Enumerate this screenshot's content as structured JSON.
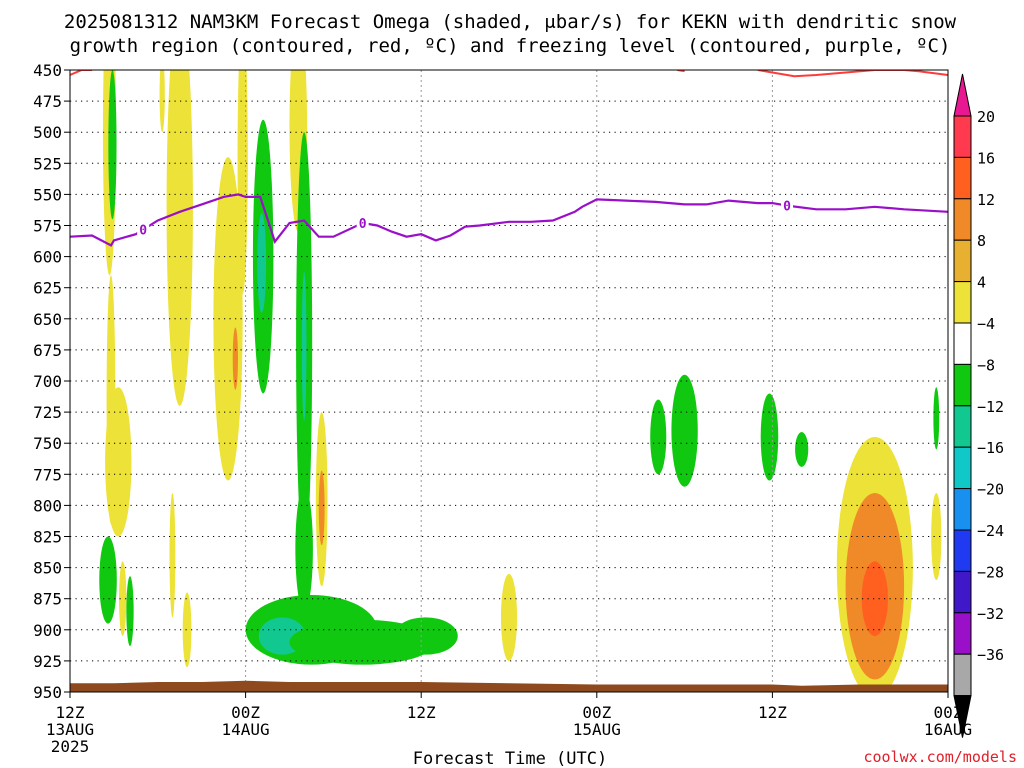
{
  "chart_data": {
    "type": "heatmap",
    "title_line1": "2025081312 NAM3KM Forecast Omega (shaded, μbar/s) for KEKN with dendritic snow",
    "title_line2": "growth region (contoured, red, ºC) and freezing level (contoured, purple, ºC)",
    "xlabel": "Forecast Time (UTC)",
    "watermark": "coolwx.com/models",
    "x_ticks": [
      {
        "hour": 0,
        "label": "12Z",
        "sub": "13AUG",
        "sub2": "2025"
      },
      {
        "hour": 12,
        "label": "00Z",
        "sub": "14AUG",
        "sub2": ""
      },
      {
        "hour": 24,
        "label": "12Z",
        "sub": "",
        "sub2": ""
      },
      {
        "hour": 36,
        "label": "00Z",
        "sub": "15AUG",
        "sub2": ""
      },
      {
        "hour": 48,
        "label": "12Z",
        "sub": "",
        "sub2": ""
      },
      {
        "hour": 60,
        "label": "00Z",
        "sub": "16AUG",
        "sub2": ""
      }
    ],
    "xlim": [
      0,
      60
    ],
    "ylim": [
      450,
      950
    ],
    "y_ticks": [
      450,
      475,
      500,
      525,
      550,
      575,
      600,
      625,
      650,
      675,
      700,
      725,
      750,
      775,
      800,
      825,
      850,
      875,
      900,
      925,
      950
    ],
    "colorbar": {
      "labels": [
        "20",
        "16",
        "12",
        "8",
        "4",
        "−4",
        "−8",
        "−12",
        "−16",
        "−20",
        "−24",
        "−28",
        "−32",
        "−36"
      ],
      "colors": [
        "#ff3a4f",
        "#ff6020",
        "#f08a28",
        "#e8b030",
        "#ece238",
        "#ffffff",
        "#11c811",
        "#10c890",
        "#10c8c8",
        "#1890f0",
        "#1f3af0",
        "#4018c8",
        "#9a10c8",
        "#a8a8a8"
      ],
      "top_cap_color": "#e81890",
      "bottom_cap_color": "#000000"
    },
    "freezing_level": {
      "label": "0",
      "color": "#9a10c8",
      "hours": [
        0,
        1.5,
        2.8,
        3,
        4.5,
        6,
        7.5,
        9,
        10.5,
        11.5,
        12,
        13,
        14,
        15,
        16,
        17,
        18,
        20,
        21,
        22,
        23,
        24,
        25,
        26,
        27,
        28,
        30,
        31.5,
        33,
        34.5,
        35,
        36,
        38,
        40,
        42,
        43.5,
        45,
        47,
        48,
        49,
        51,
        53,
        55,
        57,
        60
      ],
      "pressure": [
        584,
        583,
        591,
        587,
        582,
        571,
        564,
        558,
        552,
        550,
        552,
        552,
        588,
        573,
        571,
        584,
        584,
        573,
        575,
        580,
        584,
        582,
        587,
        583,
        576,
        575,
        572,
        572,
        571,
        564,
        560,
        554,
        555,
        556,
        558,
        558,
        555,
        557,
        557,
        559,
        562,
        562,
        560,
        562,
        564
      ]
    },
    "dgz_top": {
      "color": "#ff3a3a",
      "segments": [
        {
          "hours": [
            0,
            0.8,
            1.5
          ],
          "pressure": [
            454,
            450,
            450
          ]
        },
        {
          "hours": [
            41.5,
            42
          ],
          "pressure": [
            450,
            451
          ]
        },
        {
          "hours": [
            47,
            48,
            49.5,
            51,
            53,
            55,
            57,
            58,
            60
          ],
          "pressure": [
            450,
            452,
            455,
            454,
            452,
            450,
            450,
            451,
            454
          ]
        }
      ]
    },
    "surface": {
      "color": "#8e4a1e",
      "hours": [
        0,
        3,
        6,
        9,
        12,
        15,
        18,
        24,
        30,
        36,
        42,
        48,
        50,
        54,
        60
      ],
      "pressure": [
        943,
        943,
        942,
        942,
        941,
        942,
        942,
        942,
        943,
        944,
        944,
        944,
        945,
        944,
        944
      ]
    },
    "omega_regions": [
      {
        "value": 5,
        "cx": 2.7,
        "cy": 500,
        "rx": 0.45,
        "ry": 115
      },
      {
        "value": -6,
        "cx": 2.9,
        "cy": 510,
        "rx": 0.28,
        "ry": 60
      },
      {
        "value": 5,
        "cx": 3.3,
        "cy": 765,
        "rx": 0.9,
        "ry": 60
      },
      {
        "value": 5,
        "cx": 2.8,
        "cy": 715,
        "rx": 0.3,
        "ry": 100
      },
      {
        "value": 5,
        "cx": 6.3,
        "cy": 470,
        "rx": 0.18,
        "ry": 30
      },
      {
        "value": 5,
        "cx": 7.5,
        "cy": 560,
        "rx": 0.9,
        "ry": 160
      },
      {
        "value": 5,
        "cx": 10.8,
        "cy": 650,
        "rx": 1.0,
        "ry": 130
      },
      {
        "value": 8,
        "cx": 11.3,
        "cy": 682,
        "rx": 0.18,
        "ry": 25
      },
      {
        "value": 5,
        "cx": 11.8,
        "cy": 520,
        "rx": 0.35,
        "ry": 110
      },
      {
        "value": 5,
        "cx": 15.6,
        "cy": 495,
        "rx": 0.6,
        "ry": 85
      },
      {
        "value": -6,
        "cx": 13.2,
        "cy": 600,
        "rx": 0.7,
        "ry": 110
      },
      {
        "value": -10,
        "cx": 13.1,
        "cy": 605,
        "rx": 0.3,
        "ry": 40
      },
      {
        "value": -6,
        "cx": 16.0,
        "cy": 670,
        "rx": 0.55,
        "ry": 170
      },
      {
        "value": -10,
        "cx": 16.0,
        "cy": 672,
        "rx": 0.16,
        "ry": 60
      },
      {
        "value": 5,
        "cx": 17.2,
        "cy": 795,
        "rx": 0.4,
        "ry": 70
      },
      {
        "value": 10,
        "cx": 17.2,
        "cy": 802,
        "rx": 0.2,
        "ry": 30
      },
      {
        "value": 5,
        "cx": 7.0,
        "cy": 840,
        "rx": 0.2,
        "ry": 50
      },
      {
        "value": 5,
        "cx": 8.0,
        "cy": 900,
        "rx": 0.3,
        "ry": 30
      },
      {
        "value": -6,
        "cx": 2.6,
        "cy": 860,
        "rx": 0.6,
        "ry": 35
      },
      {
        "value": 5,
        "cx": 3.6,
        "cy": 875,
        "rx": 0.25,
        "ry": 30
      },
      {
        "value": -6,
        "cx": 4.1,
        "cy": 885,
        "rx": 0.25,
        "ry": 28
      },
      {
        "value": -6,
        "cx": 16.5,
        "cy": 900,
        "rx": 4.5,
        "ry": 28
      },
      {
        "value": -10,
        "cx": 14.5,
        "cy": 905,
        "rx": 1.6,
        "ry": 15
      },
      {
        "value": -6,
        "cx": 20.0,
        "cy": 910,
        "rx": 5.0,
        "ry": 18
      },
      {
        "value": -6,
        "cx": 16.0,
        "cy": 835,
        "rx": 0.6,
        "ry": 50
      },
      {
        "value": -6,
        "cx": 24.3,
        "cy": 905,
        "rx": 2.2,
        "ry": 15
      },
      {
        "value": 5,
        "cx": 30.0,
        "cy": 890,
        "rx": 0.55,
        "ry": 35
      },
      {
        "value": -6,
        "cx": 40.2,
        "cy": 745,
        "rx": 0.55,
        "ry": 30
      },
      {
        "value": -6,
        "cx": 42.0,
        "cy": 740,
        "rx": 0.9,
        "ry": 45
      },
      {
        "value": -6,
        "cx": 47.8,
        "cy": 745,
        "rx": 0.6,
        "ry": 35
      },
      {
        "value": -6,
        "cx": 50.0,
        "cy": 755,
        "rx": 0.45,
        "ry": 14
      },
      {
        "value": -6,
        "cx": 59.2,
        "cy": 730,
        "rx": 0.2,
        "ry": 25
      },
      {
        "value": 5,
        "cx": 59.2,
        "cy": 825,
        "rx": 0.35,
        "ry": 35
      },
      {
        "value": 5,
        "cx": 55.0,
        "cy": 850,
        "rx": 2.6,
        "ry": 105
      },
      {
        "value": 8,
        "cx": 55.0,
        "cy": 865,
        "rx": 2.0,
        "ry": 75
      },
      {
        "value": 11,
        "cx": 55.0,
        "cy": 873,
        "rx": 1.35,
        "ry": 48
      },
      {
        "value": 13,
        "cx": 55.0,
        "cy": 875,
        "rx": 0.9,
        "ry": 30
      }
    ]
  }
}
